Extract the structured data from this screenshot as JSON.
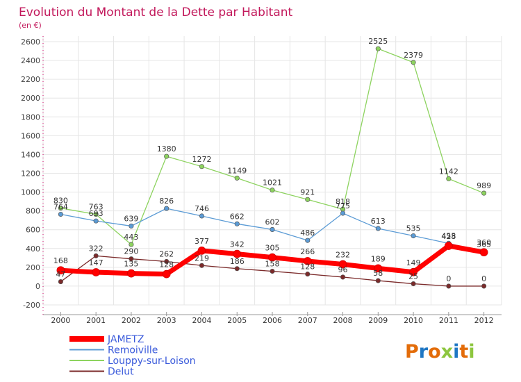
{
  "chart_data": {
    "type": "line",
    "title": "Evolution du Montant de la Dette par Habitant",
    "subtitle": "(en €)",
    "xlabel": "",
    "ylabel": "",
    "categories": [
      "2000",
      "2001",
      "2002",
      "2003",
      "2004",
      "2005",
      "2006",
      "2007",
      "2008",
      "2009",
      "2010",
      "2011",
      "2012"
    ],
    "ylim": [
      -200,
      2600
    ],
    "yticks": [
      -200,
      0,
      200,
      400,
      600,
      800,
      1000,
      1200,
      1400,
      1600,
      1800,
      2000,
      2200,
      2400,
      2600
    ],
    "grid": true,
    "legend_position": "bottom-left",
    "series": [
      {
        "name": "JAMETZ",
        "color": "#ff0000",
        "values": [
          168,
          147,
          135,
          128,
          377,
          342,
          305,
          266,
          232,
          189,
          149,
          428,
          360
        ],
        "labels": [
          "168",
          "147",
          "135",
          "128",
          "377",
          "342",
          "305",
          "266",
          "232",
          "189",
          "149",
          "428",
          "360"
        ]
      },
      {
        "name": "Remoiville",
        "color": "#5b9bd5",
        "values": [
          764,
          693,
          639,
          826,
          746,
          662,
          602,
          486,
          775,
          613,
          535,
          455,
          365
        ],
        "labels": [
          "764",
          "693",
          "639",
          "826",
          "746",
          "662",
          "602",
          "486",
          "775",
          "613",
          "535",
          "455",
          "365"
        ]
      },
      {
        "name": "Louppy-sur-Loison",
        "color": "#8dd35f",
        "values": [
          830,
          763,
          443,
          1380,
          1272,
          1149,
          1021,
          921,
          818,
          2525,
          2379,
          1142,
          989
        ],
        "labels": [
          "830",
          "763",
          "443",
          "1380",
          "1272",
          "1149",
          "1021",
          "921",
          "818",
          "2525",
          "2379",
          "1142",
          "989"
        ]
      },
      {
        "name": "Delut",
        "color": "#7b2a2a",
        "values": [
          47,
          322,
          290,
          262,
          219,
          186,
          158,
          128,
          96,
          58,
          25,
          0,
          0
        ],
        "labels": [
          "47",
          "322",
          "290",
          "262",
          "219",
          "186",
          "158",
          "128",
          "96",
          "58",
          "25",
          "0",
          "0"
        ]
      }
    ]
  },
  "watermark": {
    "letters": [
      "P",
      "r",
      "o",
      "x",
      "i",
      "t",
      "i"
    ],
    "colors": [
      "#e36c09",
      "#1f77c4",
      "#e36c09",
      "#8dc63f",
      "#1f77c4",
      "#e36c09",
      "#8dc63f"
    ]
  }
}
